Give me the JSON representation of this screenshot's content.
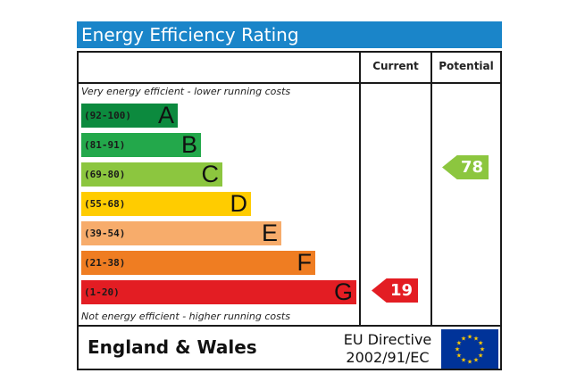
{
  "header": {
    "title": "Energy Efficiency Rating"
  },
  "columns": {
    "current": "Current",
    "potential": "Potential"
  },
  "notes": {
    "top": "Very energy efficient - lower running costs",
    "bottom": "Not energy efficient - higher running costs"
  },
  "bands": [
    {
      "range": "(92-100)",
      "letter": "A",
      "color": "#0c8a3e"
    },
    {
      "range": "(81-91)",
      "letter": "B",
      "color": "#23a84b"
    },
    {
      "range": "(69-80)",
      "letter": "C",
      "color": "#8cc63f"
    },
    {
      "range": "(55-68)",
      "letter": "D",
      "color": "#ffcc00"
    },
    {
      "range": "(39-54)",
      "letter": "E",
      "color": "#f7ac6b"
    },
    {
      "range": "(21-38)",
      "letter": "F",
      "color": "#ef7d22"
    },
    {
      "range": "(1-20)",
      "letter": "G",
      "color": "#e31d23"
    }
  ],
  "ratings": {
    "current": {
      "value": "19",
      "band": "G",
      "color": "#e31d23"
    },
    "potential": {
      "value": "78",
      "band": "C",
      "color": "#8cc63f"
    }
  },
  "footer": {
    "country": "England & Wales",
    "directive_line1": "EU Directive",
    "directive_line2": "2002/91/EC",
    "flag_icon": "eu-flag-icon"
  }
}
